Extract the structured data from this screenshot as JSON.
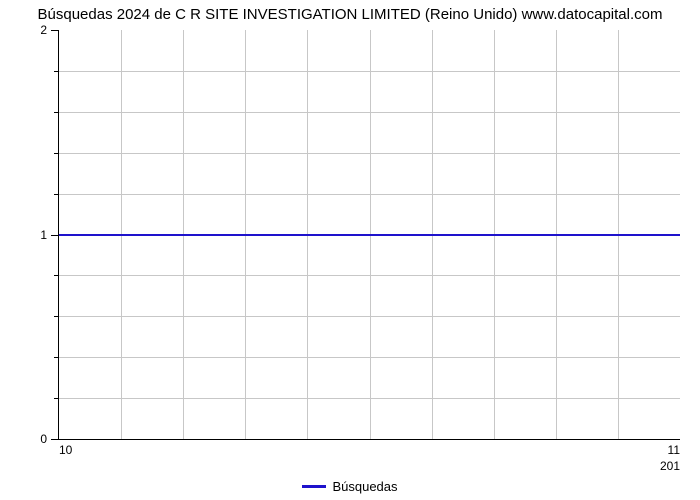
{
  "chart": {
    "type": "line",
    "title": "Búsquedas 2024 de C R SITE INVESTIGATION LIMITED (Reino Unido) www.datocapital.com",
    "title_fontsize": 15,
    "title_color": "#000000",
    "background_color": "#ffffff",
    "plot_background": "#ffffff",
    "axis_color": "#000000",
    "grid_color": "#c7c7c7",
    "x": {
      "lim": [
        10,
        11
      ],
      "ticks": [
        {
          "pos": 10,
          "label": "10"
        },
        {
          "pos": 11,
          "label": "11"
        }
      ],
      "minor_count_between": 9,
      "secondary_label": "201",
      "label_fontsize": 12
    },
    "y": {
      "lim": [
        0,
        2
      ],
      "ticks": [
        {
          "pos": 0,
          "label": "0"
        },
        {
          "pos": 1,
          "label": "1"
        },
        {
          "pos": 2,
          "label": "2"
        }
      ],
      "minor_count_between": 4,
      "label_fontsize": 12
    },
    "series": [
      {
        "name": "Búsquedas",
        "color": "#1e12cc",
        "line_width": 2,
        "x": [
          10,
          11
        ],
        "y": [
          1,
          1
        ]
      }
    ],
    "legend": {
      "position": "bottom-center",
      "fontsize": 13,
      "items": [
        {
          "label": "Búsquedas",
          "color": "#1e12cc"
        }
      ]
    }
  }
}
